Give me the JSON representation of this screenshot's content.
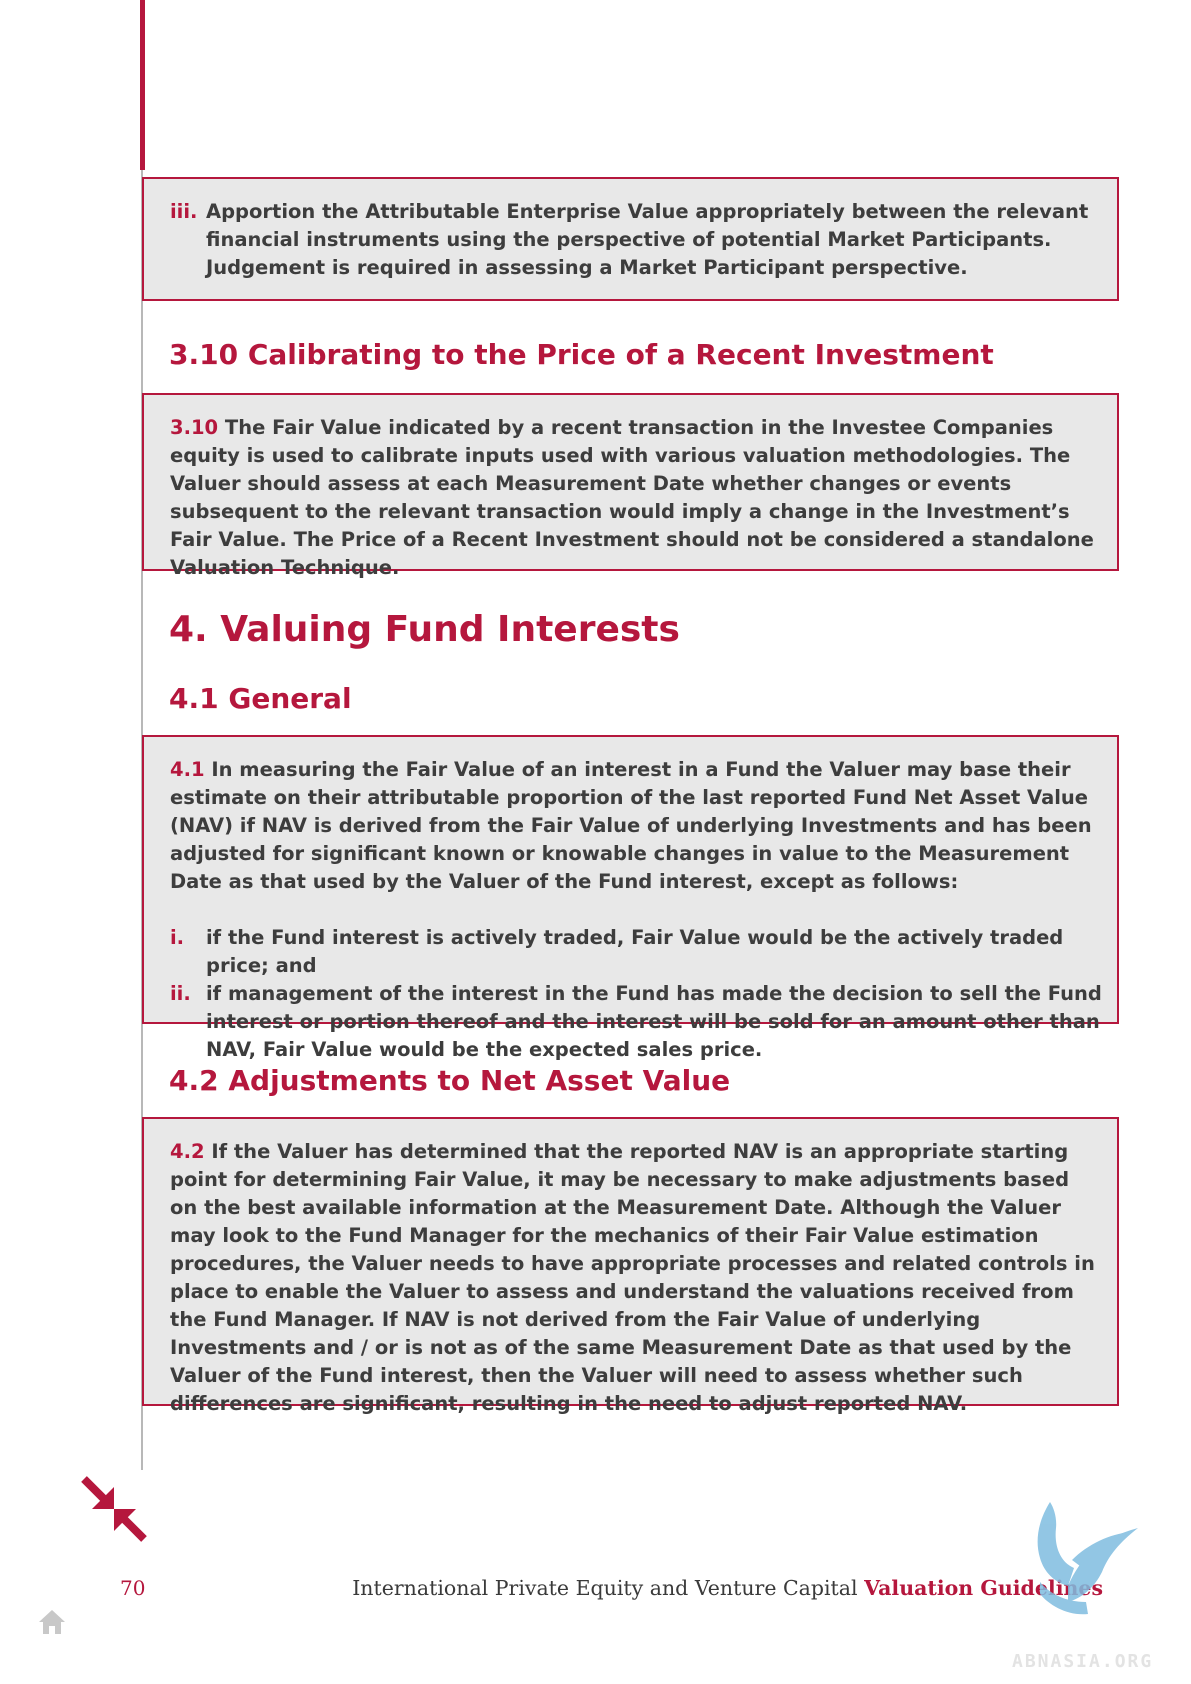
{
  "colors": {
    "accent": "#b5173d",
    "box_bg": "#e8e8e8",
    "text": "#3d3d3d"
  },
  "box_iii": {
    "roman": "iii.",
    "text": "Apportion the Attributable Enterprise Value appropriately between the relevant financial instruments using the perspective of potential Market Participants. Judgement is required in assessing a Market Participant perspective."
  },
  "section_3_10": {
    "heading": "3.10 Calibrating to the Price of a Recent Investment",
    "box_num": "3.10",
    "box_text": " The Fair Value indicated by a recent transaction in the Investee Companies equity is used to calibrate inputs used with various valuation methodologies. The Valuer should assess at each Measurement Date whether changes or events subsequent to the relevant transaction would imply a change in the Investment’s Fair Value. The Price of a Recent Investment should not be considered a standalone Valuation Technique."
  },
  "chapter_4": {
    "heading": "4. Valuing Fund Interests"
  },
  "section_4_1": {
    "heading": "4.1 General",
    "box_num": "4.1",
    "box_text": " In measuring the Fair Value of an interest in a Fund the Valuer may base their estimate on their attributable proportion of the last reported Fund Net Asset Value (NAV) if NAV is derived from the Fair Value of underlying Investments and has been adjusted for significant known or knowable changes in value to the Measurement Date as that used by the Valuer of the Fund interest, except as follows:",
    "items": [
      {
        "roman": "i.",
        "text": "if the Fund interest is actively traded, Fair Value would be the actively traded price; and"
      },
      {
        "roman": "ii.",
        "text": "if management of the interest in the Fund has made the decision to sell the Fund interest or portion thereof and the interest will be sold for an amount other than NAV, Fair Value would be the expected sales price."
      }
    ]
  },
  "section_4_2": {
    "heading": "4.2 Adjustments to Net Asset Value",
    "box_num": "4.2",
    "box_text": " If the Valuer has determined that the reported NAV is an appropriate starting point for determining Fair Value, it may be necessary to make adjustments based on the best available information at the Measurement Date. Although the Valuer may look to the Fund Manager for the mechanics of their Fair Value estimation procedures, the Valuer needs to have appropriate processes and related controls in place to enable the Valuer to assess and understand the valuations received from the Fund Manager. If NAV is not derived from the Fair Value of underlying Investments and / or is not as of the same Measurement Date as that used by the Valuer of the Fund interest, then the Valuer will need to assess whether such differences are significant, resulting in the need to adjust reported NAV."
  },
  "footer": {
    "page_number": "70",
    "title_plain": "International Private Equity and Venture Capital ",
    "title_bold": "Valuation Guidelines",
    "watermark": "ABNASIA.ORG"
  },
  "icons": {
    "collapse": "collapse-arrows-icon",
    "home": "home-icon",
    "logo": "winged-logo-icon"
  }
}
